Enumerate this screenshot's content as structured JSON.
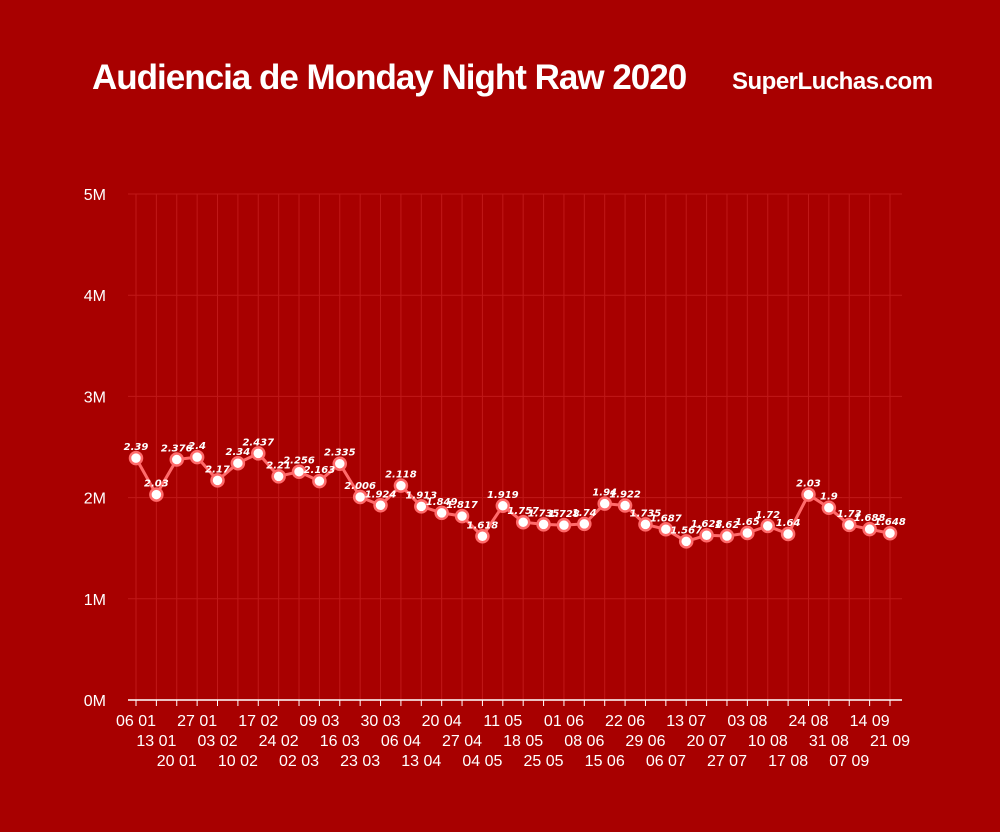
{
  "title": "Audiencia de Monday Night Raw 2020",
  "brand": "SuperLuchas.com",
  "colors": {
    "background": "#a80000",
    "line": "#ff6b6b",
    "marker_fill": "#ffffff",
    "grid": "#c01818",
    "text": "#ffffff"
  },
  "chart_data": {
    "type": "line",
    "title": "Audiencia de Monday Night Raw 2020",
    "xlabel": "",
    "ylabel": "",
    "ylim": [
      0,
      5000000
    ],
    "yticks": [
      {
        "value": 0,
        "label": "0M"
      },
      {
        "value": 1000000,
        "label": "1M"
      },
      {
        "value": 2000000,
        "label": "2M"
      },
      {
        "value": 3000000,
        "label": "3M"
      },
      {
        "value": 4000000,
        "label": "4M"
      },
      {
        "value": 5000000,
        "label": "5M"
      }
    ],
    "grid": true,
    "categories": [
      "06 01",
      "13 01",
      "20 01",
      "27 01",
      "03 02",
      "10 02",
      "17 02",
      "24 02",
      "02 03",
      "09 03",
      "16 03",
      "23 03",
      "30 03",
      "06 04",
      "13 04",
      "20 04",
      "27 04",
      "04 05",
      "11 05",
      "18 05",
      "25 05",
      "01 06",
      "08 06",
      "15 06",
      "22 06",
      "29 06",
      "06 07",
      "13 07",
      "20 07",
      "27 07",
      "03 08",
      "10 08",
      "17 08",
      "24 08",
      "31 08",
      "07 09",
      "14 09",
      "21 09"
    ],
    "values": [
      2.39,
      2.03,
      2.376,
      2.4,
      2.17,
      2.34,
      2.437,
      2.21,
      2.256,
      2.163,
      2.335,
      2.006,
      1.924,
      2.118,
      1.913,
      1.849,
      1.817,
      1.618,
      1.919,
      1.757,
      1.735,
      1.728,
      1.74,
      1.94,
      1.922,
      1.735,
      1.687,
      1.567,
      1.628,
      1.62,
      1.65,
      1.72,
      1.64,
      2.03,
      1.9,
      1.73,
      1.688,
      1.648
    ],
    "data_labels": [
      "2.39",
      "2.03",
      "2.376",
      "2.4",
      "2.17",
      "2.34",
      "2.437",
      "2.21",
      "2.256",
      "2.163",
      "2.335",
      "2.006",
      "1.924",
      "2.118",
      "1.913",
      "1.849",
      "1.817",
      "1.618",
      "1.919",
      "1.757",
      "1.735",
      "1.728",
      "1.74",
      "1.94",
      "1.922",
      "1.735",
      "1.687",
      "1.567",
      "1.628",
      "1.62",
      "1.65",
      "1.72",
      "1.64",
      "2.03",
      "1.9",
      "1.73",
      "1.688",
      "1.648"
    ],
    "value_unit": "millions"
  }
}
